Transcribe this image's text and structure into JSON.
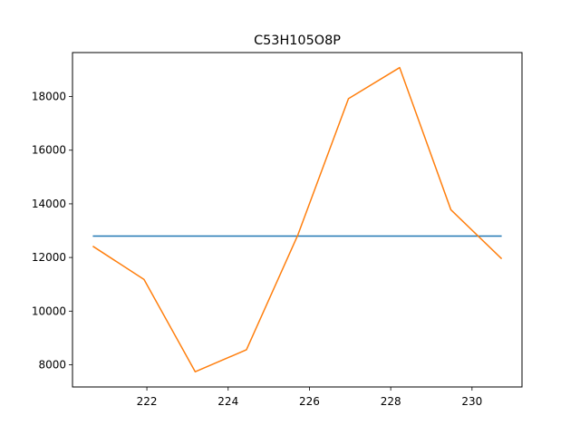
{
  "chart_data": {
    "type": "line",
    "title": "C53H105O8P",
    "xlabel": "",
    "ylabel": "",
    "xlim": [
      220.17,
      231.23
    ],
    "ylim": [
      7172.5,
      19640.0
    ],
    "x_ticks": [
      222,
      224,
      226,
      228,
      230
    ],
    "y_ticks": [
      8000,
      10000,
      12000,
      14000,
      16000,
      18000
    ],
    "grid": false,
    "series": [
      {
        "color": "#1f77b4",
        "x": [
          220.67,
          230.73
        ],
        "y": [
          12800,
          12800
        ]
      },
      {
        "color": "#ff7f0e",
        "x": [
          220.67,
          221.93,
          223.19,
          224.45,
          225.71,
          226.96,
          228.22,
          229.48,
          230.73
        ],
        "y": [
          12420,
          11180,
          7740,
          8560,
          12820,
          17920,
          19080,
          13780,
          11950
        ]
      }
    ]
  }
}
